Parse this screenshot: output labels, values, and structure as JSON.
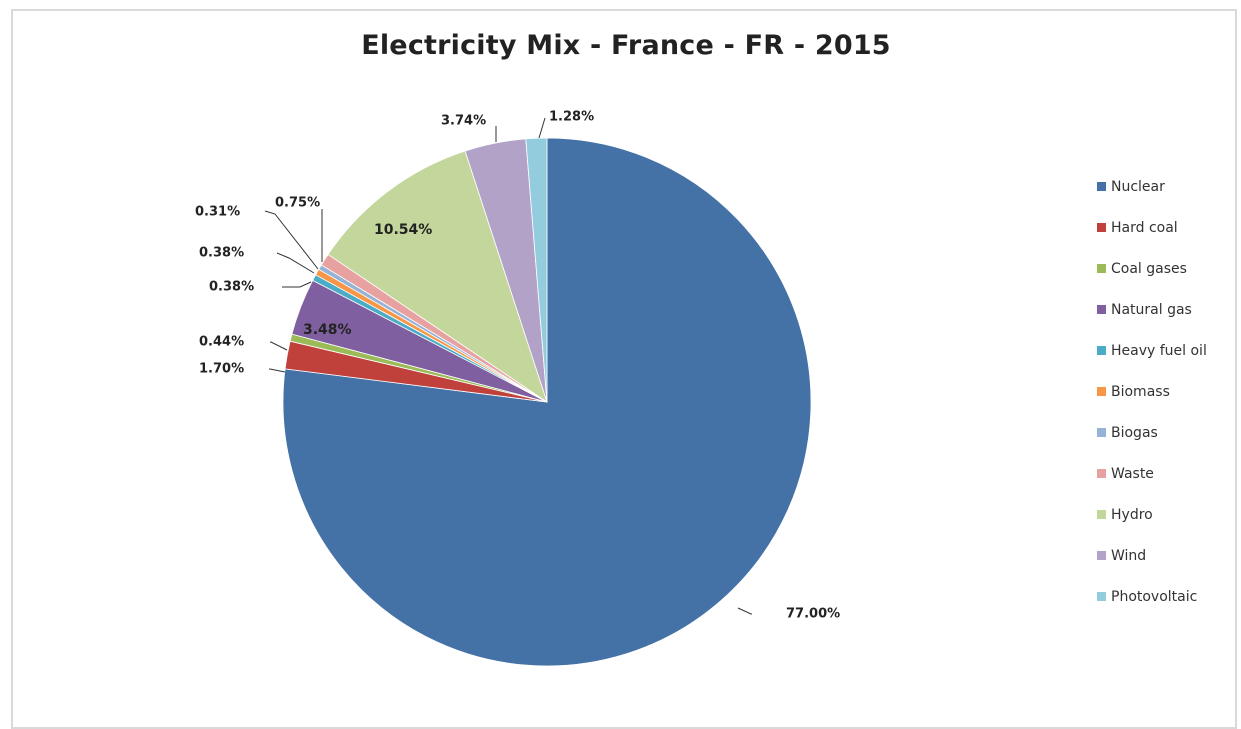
{
  "chart_data": {
    "type": "pie",
    "title": "Electricity Mix - France - FR - 2015",
    "unit": "%",
    "legend_position": "right",
    "slices": [
      {
        "name": "Nuclear",
        "value": 77.0,
        "label": "77.00%",
        "color": "#4471a6"
      },
      {
        "name": "Hard coal",
        "value": 1.7,
        "label": "1.70%",
        "color": "#c0403b"
      },
      {
        "name": "Coal gases",
        "value": 0.44,
        "label": "0.44%",
        "color": "#9bbb59"
      },
      {
        "name": "Natural gas",
        "value": 3.48,
        "label": "3.48%",
        "color": "#7f5f9f"
      },
      {
        "name": "Heavy fuel oil",
        "value": 0.38,
        "label": "0.38%",
        "color": "#4aacc6"
      },
      {
        "name": "Biomass",
        "value": 0.38,
        "label": "0.38%",
        "color": "#f79646"
      },
      {
        "name": "Biogas",
        "value": 0.31,
        "label": "0.31%",
        "color": "#95b3d7"
      },
      {
        "name": "Waste",
        "value": 0.75,
        "label": "0.75%",
        "color": "#e6a1a0"
      },
      {
        "name": "Hydro",
        "value": 10.54,
        "label": "10.54%",
        "color": "#c3d69b"
      },
      {
        "name": "Wind",
        "value": 3.74,
        "label": "3.74%",
        "color": "#b3a2c7"
      },
      {
        "name": "Photovoltaic",
        "value": 1.28,
        "label": "1.28%",
        "color": "#93cddd"
      }
    ]
  }
}
